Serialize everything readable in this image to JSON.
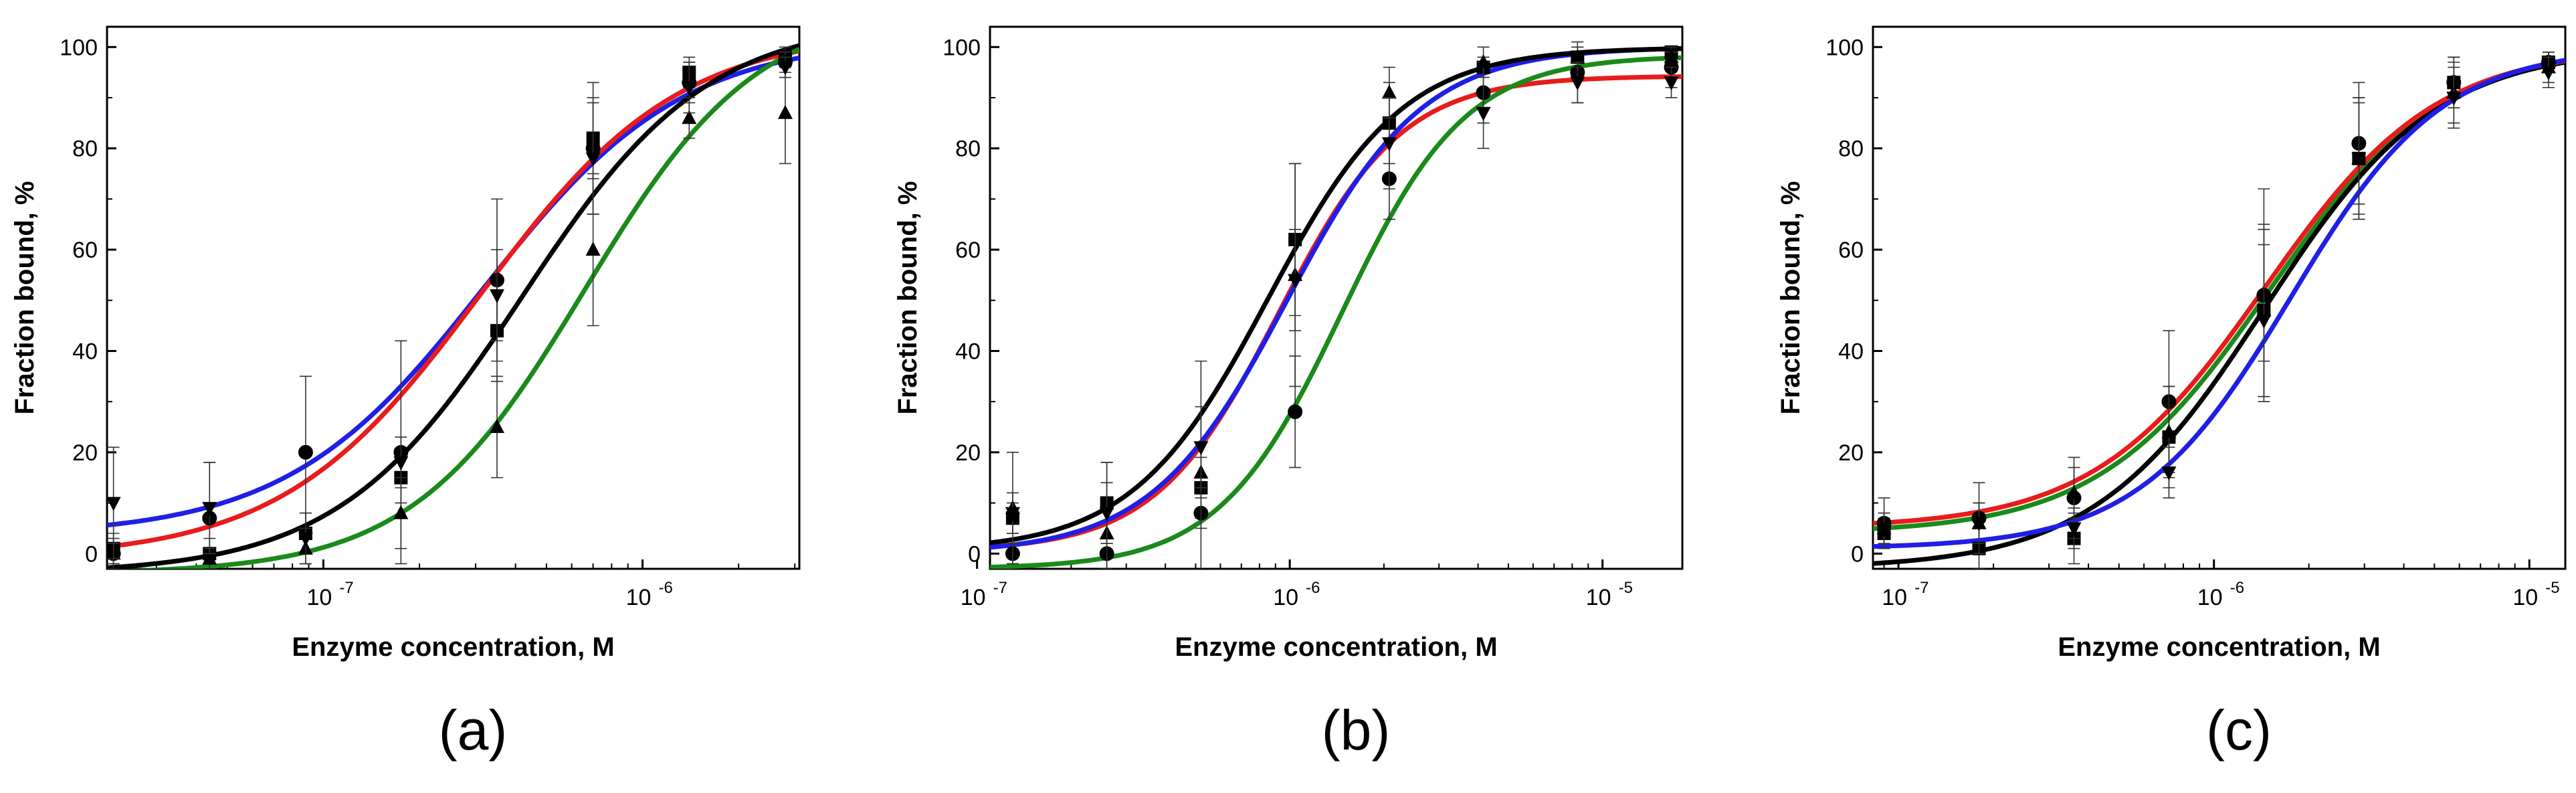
{
  "figure": {
    "panel_labels": [
      "(a)",
      "(b)",
      "(c)"
    ]
  },
  "chart_data": [
    {
      "panel": "(a)",
      "type": "scatter",
      "title": "",
      "xlabel": "Enzyme concentration, M",
      "ylabel": "Fraction bound, %",
      "xscale": "log",
      "xlim": [
        2.1e-08,
        3.1e-06
      ],
      "ylim": [
        -3,
        104
      ],
      "xticks": [
        {
          "value": 1e-07,
          "label": "10",
          "exp": "-7"
        },
        {
          "value": 1e-06,
          "label": "10",
          "exp": "-6"
        }
      ],
      "yticks": [
        0,
        20,
        40,
        60,
        80,
        100
      ],
      "grid": false,
      "legend": "none",
      "series": [
        {
          "name": "square",
          "marker": "square",
          "color": "#000000",
          "x": [
            2.2e-08,
            4.4e-08,
            8.8e-08,
            1.75e-07,
            3.5e-07,
            7e-07,
            1.4e-06,
            2.8e-06
          ],
          "y": [
            1,
            0,
            4,
            15,
            44,
            82,
            95,
            98
          ],
          "err": [
            3,
            3,
            4,
            5,
            10,
            8,
            3,
            2
          ]
        },
        {
          "name": "circle",
          "marker": "circle",
          "color": "#000000",
          "x": [
            2.2e-08,
            4.4e-08,
            8.8e-08,
            1.75e-07,
            3.5e-07,
            7e-07,
            1.4e-06,
            2.8e-06
          ],
          "y": [
            0,
            7,
            20,
            20,
            54,
            80,
            93,
            97
          ],
          "err": [
            3,
            11,
            15,
            22,
            16,
            13,
            4,
            2
          ]
        },
        {
          "name": "triangle-up",
          "marker": "triangle-up",
          "color": "#000000",
          "x": [
            2.2e-08,
            4.4e-08,
            8.8e-08,
            1.75e-07,
            3.5e-07,
            7e-07,
            1.4e-06,
            2.8e-06
          ],
          "y": [
            0,
            -1,
            1,
            8,
            25,
            60,
            86,
            87
          ],
          "err": [
            2,
            2,
            3,
            7,
            10,
            15,
            4,
            10
          ]
        },
        {
          "name": "triangle-down",
          "marker": "triangle-down",
          "color": "#000000",
          "x": [
            2.2e-08,
            4.4e-08,
            8.8e-08,
            1.75e-07,
            3.5e-07,
            7e-07,
            1.4e-06,
            2.8e-06
          ],
          "y": [
            10,
            9,
            3,
            18,
            51,
            78,
            92,
            96
          ],
          "err": [
            11,
            9,
            5,
            5,
            9,
            11,
            5,
            2
          ]
        }
      ],
      "fits": [
        {
          "color": "#1f1fe6",
          "bottom": 3.5,
          "top": 101.8,
          "ec50": 3.2e-07,
          "hill": 1.4
        },
        {
          "color": "#e81c1c",
          "bottom": -1,
          "top": 103.2,
          "ec50": 3.1e-07,
          "hill": 1.4
        },
        {
          "color": "#000000",
          "bottom": -4,
          "top": 105.5,
          "ec50": 4.2e-07,
          "hill": 1.5
        },
        {
          "color": "#1a8a1a",
          "bottom": -4,
          "top": 108.3,
          "ec50": 6.6e-07,
          "hill": 1.6
        }
      ]
    },
    {
      "panel": "(b)",
      "type": "scatter",
      "title": "",
      "xlabel": "Enzyme concentration, M",
      "ylabel": "Fraction bound, %",
      "xscale": "log",
      "xlim": [
        1.1e-07,
        1.8e-05
      ],
      "ylim": [
        -3,
        104
      ],
      "xticks": [
        {
          "value": 1e-07,
          "label": "10",
          "exp": "-7"
        },
        {
          "value": 1e-06,
          "label": "10",
          "exp": "-6"
        },
        {
          "value": 1e-05,
          "label": "10",
          "exp": "-5"
        }
      ],
      "yticks": [
        0,
        20,
        40,
        60,
        80,
        100
      ],
      "grid": false,
      "legend": "none",
      "series": [
        {
          "name": "square",
          "marker": "square",
          "color": "#000000",
          "x": [
            1.3e-07,
            2.6e-07,
            5.2e-07,
            1.04e-06,
            2.08e-06,
            4.16e-06,
            8.32e-06,
            1.66e-05
          ],
          "y": [
            7,
            10,
            13,
            62,
            85,
            96,
            98,
            99
          ],
          "err": [
            3,
            8,
            6,
            15,
            8,
            2,
            2,
            1
          ]
        },
        {
          "name": "circle",
          "marker": "circle",
          "color": "#000000",
          "x": [
            1.3e-07,
            2.6e-07,
            5.2e-07,
            1.04e-06,
            2.08e-06,
            4.16e-06,
            8.32e-06,
            1.66e-05
          ],
          "y": [
            0,
            0,
            8,
            28,
            74,
            91,
            95,
            96
          ],
          "err": [
            2,
            3,
            3,
            11,
            8,
            6,
            6,
            4
          ]
        },
        {
          "name": "triangle-up",
          "marker": "triangle-up",
          "color": "#000000",
          "x": [
            1.3e-07,
            2.6e-07,
            5.2e-07,
            1.04e-06,
            2.08e-06,
            4.16e-06,
            8.32e-06,
            1.66e-05
          ],
          "y": [
            9,
            4,
            16,
            55,
            91,
            97,
            98,
            98
          ],
          "err": [
            11,
            14,
            22,
            22,
            5,
            3,
            2,
            1
          ]
        },
        {
          "name": "triangle-down",
          "marker": "triangle-down",
          "color": "#000000",
          "x": [
            1.3e-07,
            2.6e-07,
            5.2e-07,
            1.04e-06,
            2.08e-06,
            4.16e-06,
            8.32e-06,
            1.66e-05
          ],
          "y": [
            8,
            8,
            21,
            54,
            81,
            87,
            93,
            93
          ],
          "err": [
            4,
            6,
            8,
            10,
            9,
            7,
            4,
            3
          ]
        }
      ],
      "fits": [
        {
          "color": "#e81c1c",
          "bottom": 0.5,
          "top": 94.3,
          "ec50": 9.2e-07,
          "hill": 2.2
        },
        {
          "color": "#1f1fe6",
          "bottom": 0,
          "top": 100,
          "ec50": 9.8e-07,
          "hill": 2.0
        },
        {
          "color": "#000000",
          "bottom": 0.5,
          "top": 99.9,
          "ec50": 8.5e-07,
          "hill": 2.0
        },
        {
          "color": "#1a8a1a",
          "bottom": -3,
          "top": 98.3,
          "ec50": 1.47e-06,
          "hill": 2.2
        }
      ]
    },
    {
      "panel": "(c)",
      "type": "scatter",
      "title": "",
      "xlabel": "Enzyme concentration, M",
      "ylabel": "Fraction bound, %",
      "xscale": "log",
      "xlim": [
        8.3e-08,
        1.3e-05
      ],
      "ylim": [
        -3,
        104
      ],
      "xticks": [
        {
          "value": 1e-07,
          "label": "10",
          "exp": "-7"
        },
        {
          "value": 1e-06,
          "label": "10",
          "exp": "-6"
        },
        {
          "value": 1e-05,
          "label": "10",
          "exp": "-5"
        }
      ],
      "yticks": [
        0,
        20,
        40,
        60,
        80,
        100
      ],
      "grid": false,
      "legend": "none",
      "series": [
        {
          "name": "square",
          "marker": "square",
          "color": "#000000",
          "x": [
            9e-08,
            1.8e-07,
            3.6e-07,
            7.2e-07,
            1.44e-06,
            2.88e-06,
            5.76e-06,
            1.15e-05
          ],
          "y": [
            4,
            1,
            3,
            23,
            48,
            78,
            93,
            97
          ],
          "err": [
            3,
            4,
            5,
            10,
            17,
            12,
            5,
            2
          ]
        },
        {
          "name": "circle",
          "marker": "circle",
          "color": "#000000",
          "x": [
            9e-08,
            1.8e-07,
            3.6e-07,
            7.2e-07,
            1.44e-06,
            2.88e-06,
            5.76e-06,
            1.15e-05
          ],
          "y": [
            6,
            7,
            11,
            30,
            51,
            81,
            93,
            97
          ],
          "err": [
            5,
            7,
            8,
            14,
            21,
            12,
            5,
            2
          ]
        },
        {
          "name": "triangle-up",
          "marker": "triangle-up",
          "color": "#000000",
          "x": [
            9e-08,
            1.8e-07,
            3.6e-07,
            7.2e-07,
            1.44e-06,
            2.88e-06,
            5.76e-06,
            1.15e-05
          ],
          "y": [
            5,
            6,
            12,
            24,
            51,
            78,
            91,
            96
          ],
          "err": [
            3,
            4,
            5,
            9,
            13,
            11,
            6,
            3
          ]
        },
        {
          "name": "triangle-down",
          "marker": "triangle-down",
          "color": "#000000",
          "x": [
            9e-08,
            1.8e-07,
            3.6e-07,
            7.2e-07,
            1.44e-06,
            2.88e-06,
            5.76e-06,
            1.15e-05
          ],
          "y": [
            5,
            6,
            5,
            16,
            46,
            78,
            90,
            95
          ],
          "err": [
            3,
            4,
            4,
            5,
            15,
            12,
            6,
            3
          ]
        }
      ],
      "fits": [
        {
          "color": "#1a8a1a",
          "bottom": 4,
          "top": 100,
          "ec50": 1.5e-06,
          "hill": 1.6
        },
        {
          "color": "#000000",
          "bottom": -3,
          "top": 100,
          "ec50": 1.45e-06,
          "hill": 1.6
        },
        {
          "color": "#e81c1c",
          "bottom": 5,
          "top": 100,
          "ec50": 1.45e-06,
          "hill": 1.6
        },
        {
          "color": "#1f1fe6",
          "bottom": 1,
          "top": 100,
          "ec50": 1.75e-06,
          "hill": 1.8
        }
      ]
    }
  ]
}
